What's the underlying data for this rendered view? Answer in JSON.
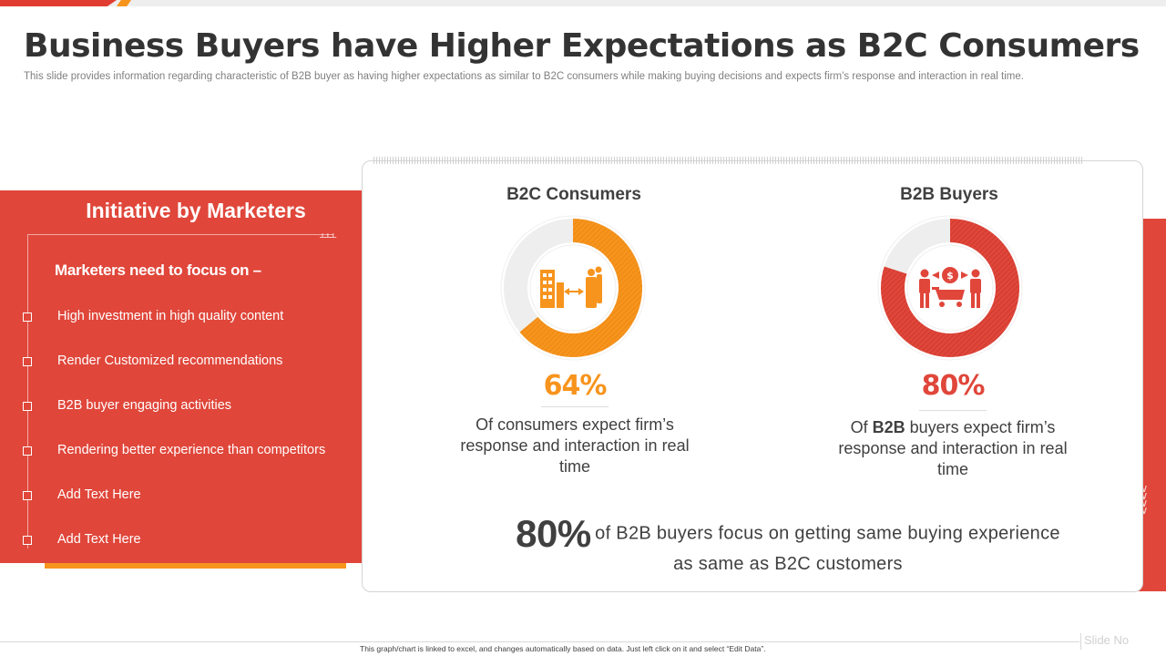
{
  "slide": {
    "title": "Business Buyers have Higher Expectations as B2C Consumers",
    "subtitle": "This slide provides information regarding characteristic of B2B buyer as having higher expectations as similar to B2C consumers while making buying decisions and expects firm’s response and interaction in real time."
  },
  "left_panel": {
    "heading": "Initiative by Marketers",
    "subheading": "Marketers need to focus on –",
    "items": [
      "High investment in high quality content",
      "Render Customized recommendations",
      "B2B buyer engaging activities",
      "Rendering better experience than competitors",
      "Add Text Here",
      "Add Text Here"
    ]
  },
  "b2c": {
    "heading": "B2C Consumers",
    "percent_value": 64,
    "percent_label": "64%",
    "description": "Of consumers expect firm’s response and interaction in real time",
    "icon": "buildings-people-exchange-icon",
    "color": "#f7941d"
  },
  "b2b": {
    "heading": "B2B Buyers",
    "percent_value": 80,
    "percent_label": "80%",
    "desc_prefix": "Of ",
    "desc_bold": "B2B",
    "desc_suffix": " buyers expect firm’s response and interaction in real time",
    "icon": "buyers-cart-dollar-icon",
    "color": "#e0463a"
  },
  "bottom_stat": {
    "percent": "80%",
    "text_line1": "of B2B buyers focus on getting same buying experience",
    "text_line2": "as same as B2C customers"
  },
  "footer": {
    "note": "This graph/chart is linked to excel, and changes automatically based on data. Just left click on it and select “Edit Data”.",
    "slide_no": "Slide No"
  },
  "colors": {
    "accent_red": "#e0463a",
    "accent_orange": "#f7941d"
  }
}
